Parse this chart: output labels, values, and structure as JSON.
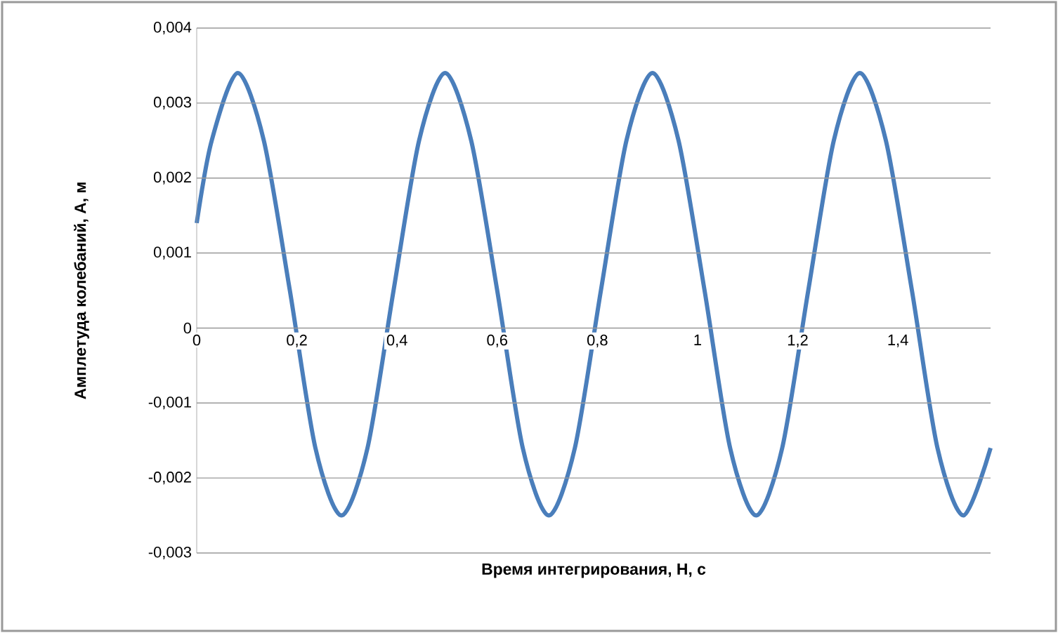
{
  "chart_data": {
    "type": "line",
    "xlabel": "Время интегрирования, Н, с",
    "ylabel": "Амплетуда колебаний, А, м",
    "x": [
      0,
      0.03,
      0.082,
      0.134,
      0.186,
      0.237,
      0.289,
      0.341,
      0.393,
      0.444,
      0.496,
      0.548,
      0.6,
      0.651,
      0.703,
      0.755,
      0.807,
      0.858,
      0.91,
      0.962,
      1.014,
      1.065,
      1.117,
      1.169,
      1.221,
      1.272,
      1.324,
      1.376,
      1.428,
      1.479,
      1.531,
      1.585
    ],
    "series": [
      {
        "color": "#4a7ebb",
        "values": [
          0.0014,
          0.0025,
          0.0034,
          0.0025,
          0.0005,
          -0.0016,
          -0.0025,
          -0.0016,
          0.0005,
          0.0025,
          0.0034,
          0.0025,
          0.0005,
          -0.0016,
          -0.0025,
          -0.0016,
          0.0005,
          0.0025,
          0.0034,
          0.0025,
          0.0005,
          -0.0016,
          -0.0025,
          -0.0016,
          0.0005,
          0.0025,
          0.0034,
          0.0025,
          0.0005,
          -0.0016,
          -0.0025,
          -0.0016
        ]
      }
    ],
    "xlim": [
      0,
      1.585
    ],
    "ylim": [
      -0.003,
      0.004
    ],
    "xticks": [
      0,
      {
        "value": 0.2,
        "label": "0,2"
      },
      {
        "value": 0.4,
        "label": "0,4"
      },
      {
        "value": 0.6,
        "label": "0,6"
      },
      {
        "value": 0.8,
        "label": "0,8"
      },
      1,
      {
        "value": 1.2,
        "label": "1,2"
      },
      {
        "value": 1.4,
        "label": "1,4"
      }
    ],
    "yticks": [
      {
        "value": -0.003,
        "label": "-0,003"
      },
      {
        "value": -0.002,
        "label": "-0,002"
      },
      {
        "value": -0.001,
        "label": "-0,001"
      },
      0,
      {
        "value": 0.001,
        "label": "0,001"
      },
      {
        "value": 0.002,
        "label": "0,002"
      },
      {
        "value": 0.003,
        "label": "0,003"
      },
      {
        "value": 0.004,
        "label": "0,004"
      }
    ],
    "grid": "y",
    "marker": "none",
    "line_style": "solid"
  }
}
